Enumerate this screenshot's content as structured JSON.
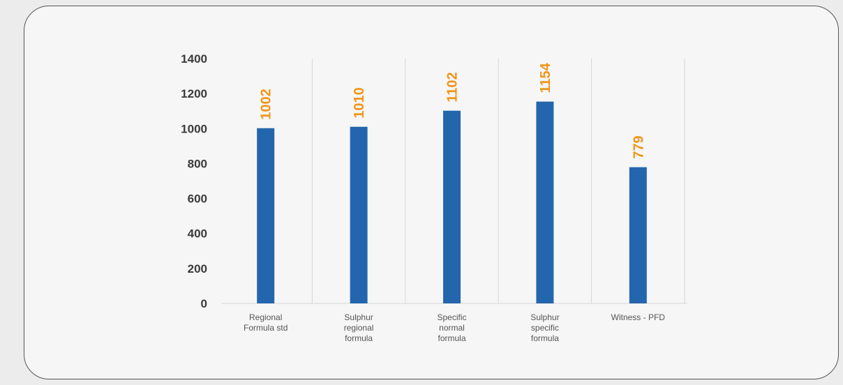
{
  "chart_data": {
    "type": "bar",
    "categories": [
      [
        "Regional",
        "Formula std"
      ],
      [
        "Sulphur",
        "regional",
        "formula"
      ],
      [
        "Specific",
        "normal",
        "formula"
      ],
      [
        "Sulphur",
        "specific",
        "formula"
      ],
      [
        "Witness - PFD"
      ]
    ],
    "values": [
      1002,
      1010,
      1102,
      1154,
      779
    ],
    "data_labels": [
      "1002",
      "1010",
      "1102",
      "1154",
      "779"
    ],
    "yticks": [
      "0",
      "200",
      "400",
      "600",
      "800",
      "1000",
      "1200",
      "1400"
    ],
    "ylim": [
      0,
      1400
    ],
    "grid": "vertical separators between categories",
    "legend": "none",
    "colors": {
      "bar": "#2466ad",
      "data_label": "#f0951a",
      "axis_text": "#3a3a3a",
      "gridline": "#d6d6d6"
    }
  }
}
